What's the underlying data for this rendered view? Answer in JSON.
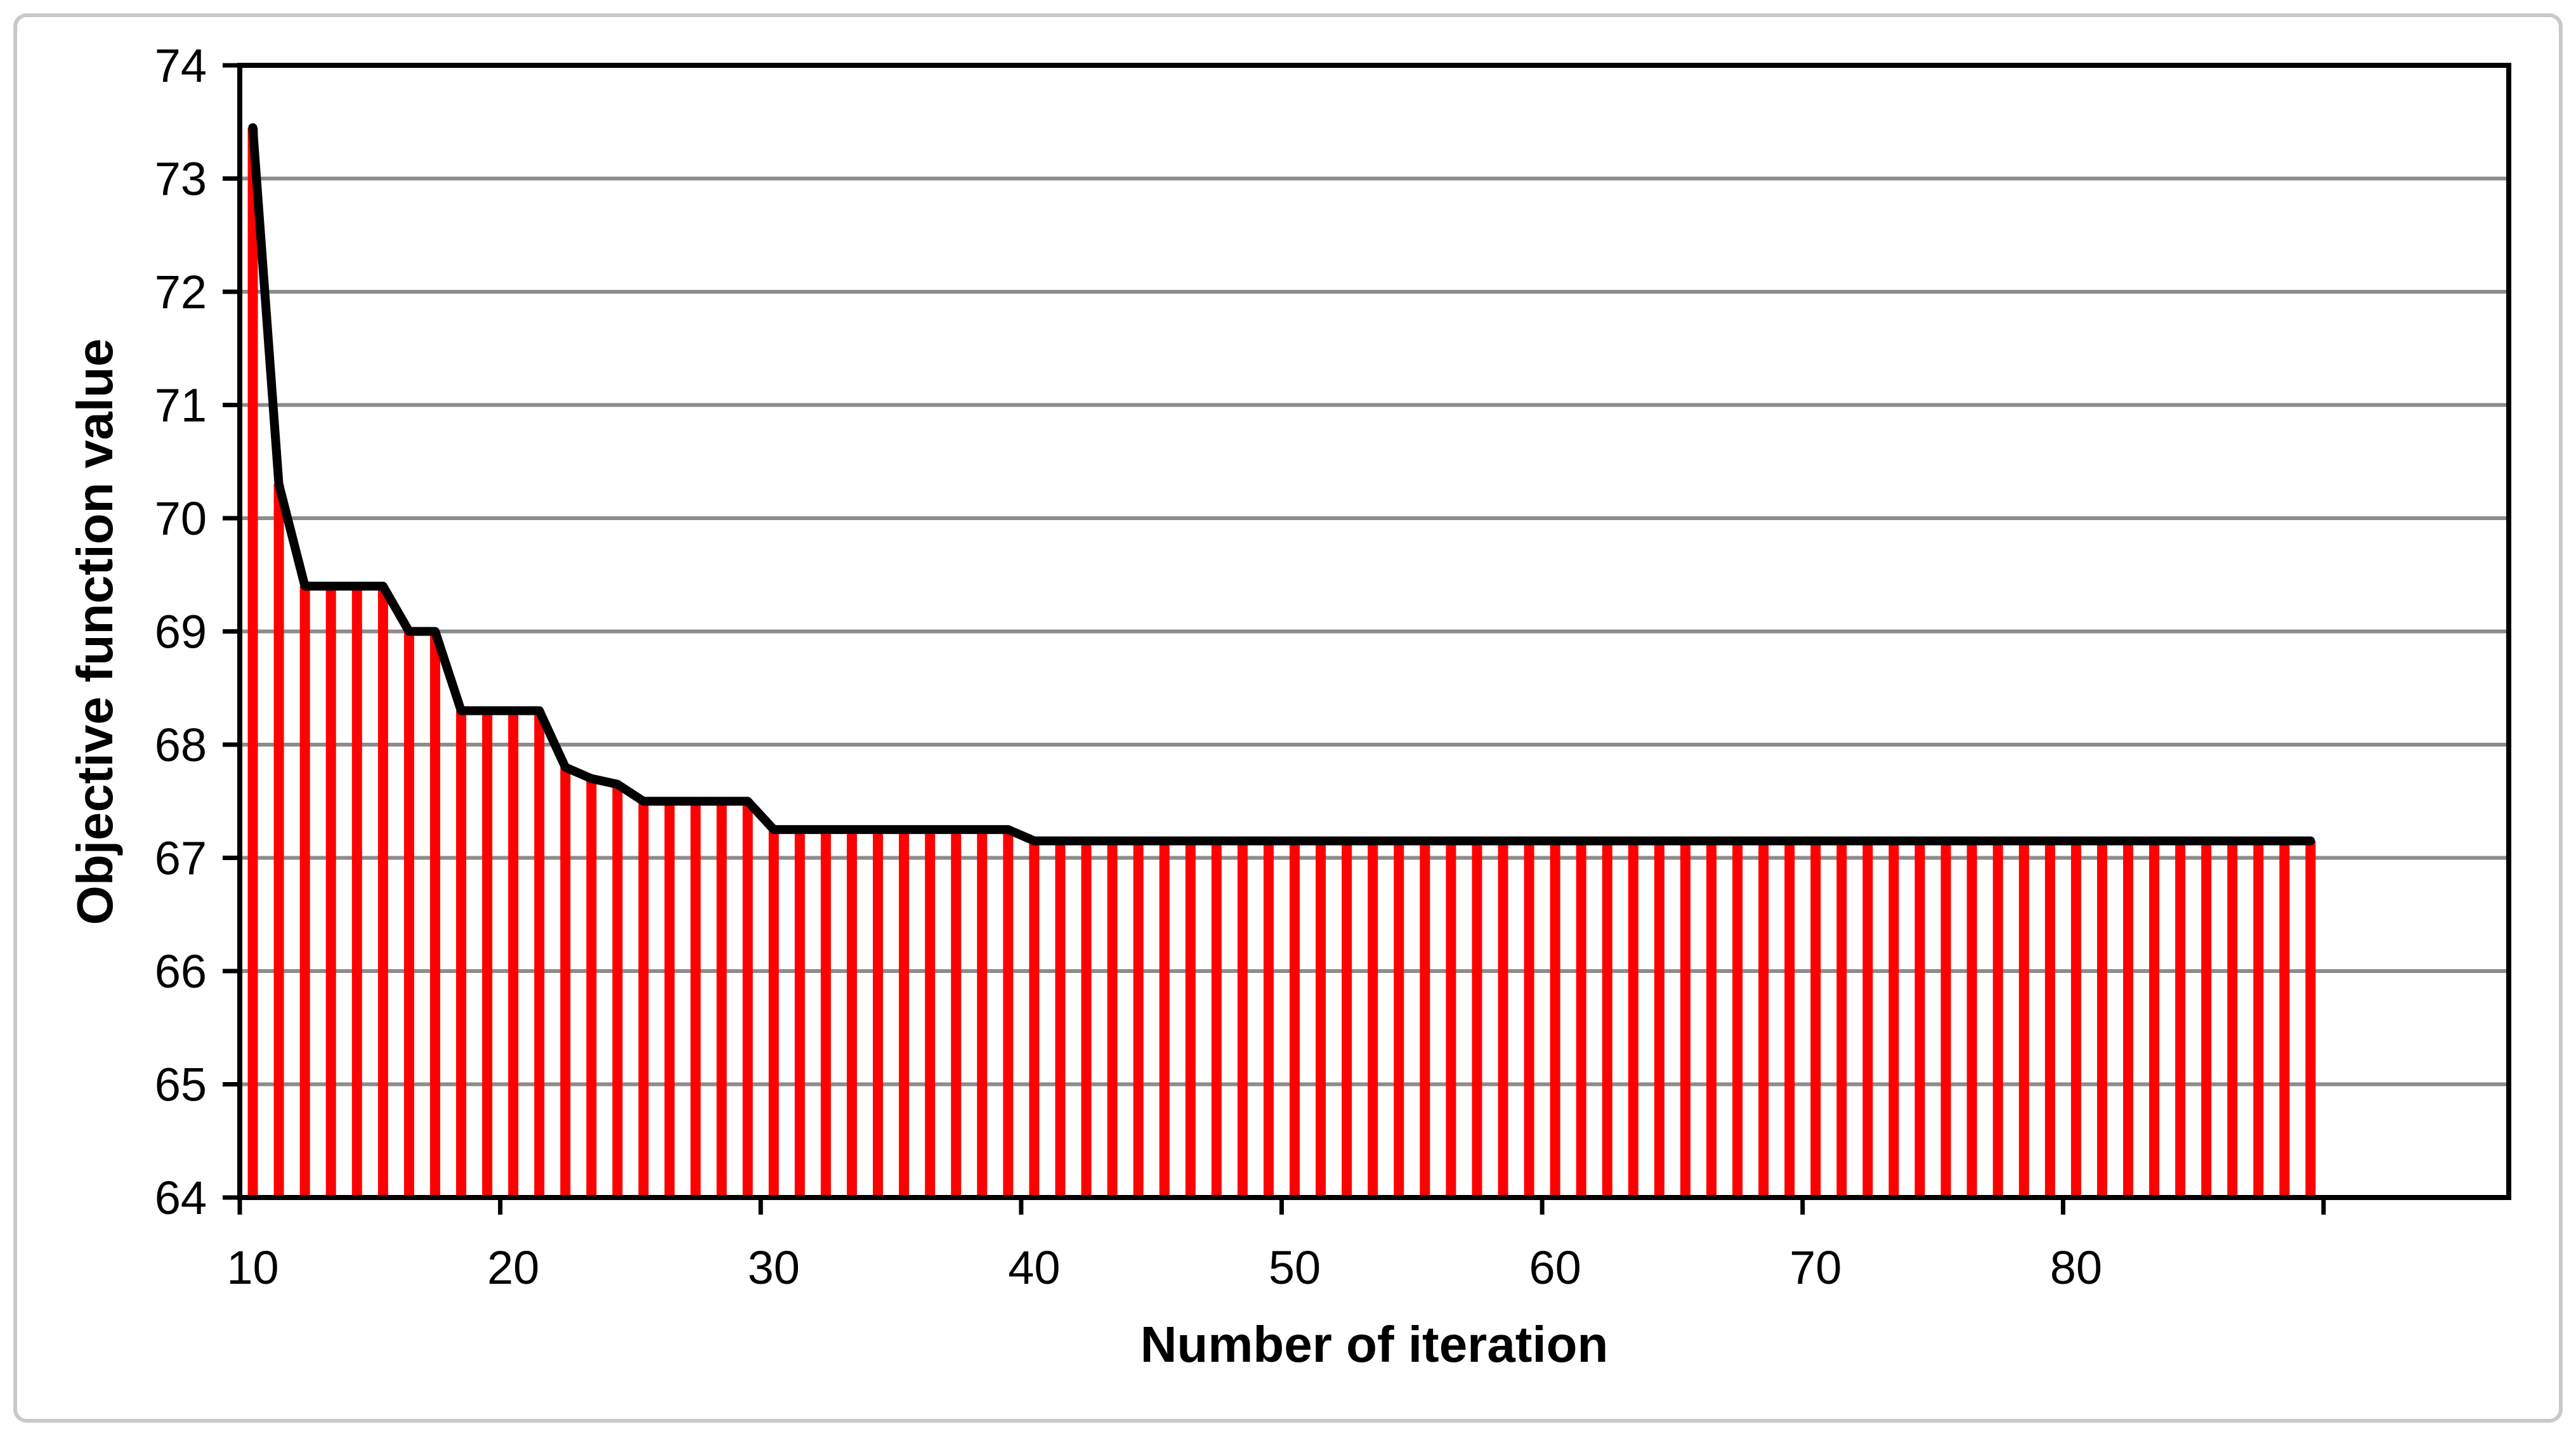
{
  "chart_data": {
    "type": "bar",
    "overlay": "line",
    "title": "",
    "xlabel": "Number of iteration",
    "ylabel": "Objective function value",
    "x": [
      10,
      11,
      12,
      13,
      14,
      15,
      16,
      17,
      18,
      19,
      20,
      21,
      22,
      23,
      24,
      25,
      26,
      27,
      28,
      29,
      30,
      31,
      32,
      33,
      34,
      35,
      36,
      37,
      38,
      39,
      40,
      41,
      42,
      43,
      44,
      45,
      46,
      47,
      48,
      49,
      50,
      51,
      52,
      53,
      54,
      55,
      56,
      57,
      58,
      59,
      60,
      61,
      62,
      63,
      64,
      65,
      66,
      67,
      68,
      69,
      70,
      71,
      72,
      73,
      74,
      75,
      76,
      77,
      78,
      79,
      80,
      81,
      82,
      83,
      84,
      85,
      86,
      87,
      88,
      89
    ],
    "values": [
      73.45,
      70.3,
      69.4,
      69.4,
      69.4,
      69.4,
      69.0,
      69.0,
      68.3,
      68.3,
      68.3,
      68.3,
      67.8,
      67.7,
      67.65,
      67.5,
      67.5,
      67.5,
      67.5,
      67.5,
      67.25,
      67.25,
      67.25,
      67.25,
      67.25,
      67.25,
      67.25,
      67.25,
      67.25,
      67.25,
      67.15,
      67.15,
      67.15,
      67.15,
      67.15,
      67.15,
      67.15,
      67.15,
      67.15,
      67.15,
      67.15,
      67.15,
      67.15,
      67.15,
      67.15,
      67.15,
      67.15,
      67.15,
      67.15,
      67.15,
      67.15,
      67.15,
      67.15,
      67.15,
      67.15,
      67.15,
      67.15,
      67.15,
      67.15,
      67.15,
      67.15,
      67.15,
      67.15,
      67.15,
      67.15,
      67.15,
      67.15,
      67.15,
      67.15,
      67.15,
      67.15,
      67.15,
      67.15,
      67.15,
      67.15,
      67.15,
      67.15,
      67.15,
      67.15,
      67.15
    ],
    "ylim": [
      64,
      74
    ],
    "yticks": [
      74,
      73,
      72,
      71,
      70,
      69,
      68,
      67,
      66,
      65,
      64
    ],
    "xticks": [
      10,
      20,
      30,
      40,
      50,
      60,
      70,
      80,
      90
    ],
    "xtick_labels": [
      "10",
      "20",
      "30",
      "40",
      "50",
      "60",
      "70",
      "80"
    ],
    "grid": true,
    "legend_position": "none",
    "colors": {
      "bar": "#ff0000",
      "line": "#000000",
      "gridline": "#8c8c8c",
      "axis": "#000000",
      "text": "#000000",
      "chart_border": "#c9c9c9",
      "background": "#ffffff"
    }
  }
}
